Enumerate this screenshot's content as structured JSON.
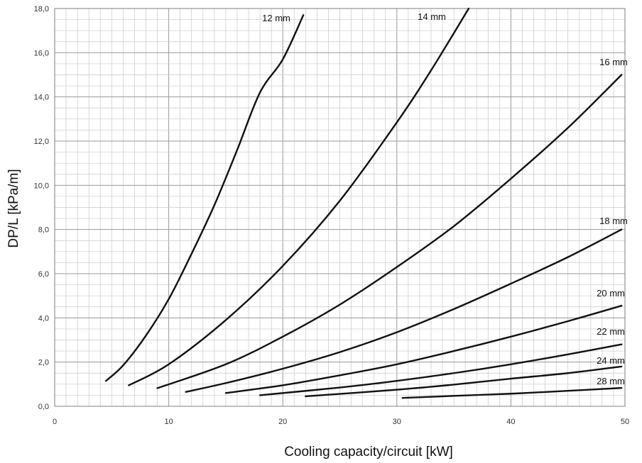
{
  "chart_data": {
    "type": "line",
    "xlabel": "Cooling capacity/circuit [kW]",
    "ylabel": "DP/L [kPa/m]",
    "xlim": [
      0,
      50
    ],
    "ylim": [
      0,
      18
    ],
    "x_ticks": [
      0,
      10,
      20,
      30,
      40,
      50
    ],
    "x_tick_labels": [
      "0",
      "10",
      "20",
      "30",
      "40",
      "50"
    ],
    "y_ticks": [
      0,
      2,
      4,
      6,
      8,
      10,
      12,
      14,
      16,
      18
    ],
    "y_tick_labels": [
      "0,0",
      "2,0",
      "4,0",
      "6,0",
      "8,0",
      "10,0",
      "12,0",
      "14,0",
      "16,0",
      "18,0"
    ],
    "x_minor_step": 1,
    "y_minor_step": 0.5,
    "grid": true,
    "series": [
      {
        "name": "12 mm",
        "points": [
          [
            4.5,
            1.15
          ],
          [
            6,
            1.85
          ],
          [
            8,
            3.2
          ],
          [
            10,
            4.85
          ],
          [
            12,
            6.9
          ],
          [
            14,
            9.1
          ],
          [
            16,
            11.6
          ],
          [
            18,
            14.2
          ],
          [
            20,
            15.7
          ],
          [
            21.8,
            17.7
          ]
        ]
      },
      {
        "name": "14 mm",
        "points": [
          [
            6.5,
            0.95
          ],
          [
            10,
            1.9
          ],
          [
            15,
            3.9
          ],
          [
            20,
            6.35
          ],
          [
            25,
            9.3
          ],
          [
            30,
            12.85
          ],
          [
            33,
            15.2
          ],
          [
            36.3,
            18.0
          ]
        ]
      },
      {
        "name": "16 mm",
        "points": [
          [
            9,
            0.82
          ],
          [
            15,
            1.9
          ],
          [
            20,
            3.15
          ],
          [
            25,
            4.6
          ],
          [
            30,
            6.3
          ],
          [
            35,
            8.15
          ],
          [
            40,
            10.3
          ],
          [
            45,
            12.6
          ],
          [
            49.7,
            15.0
          ]
        ]
      },
      {
        "name": "18 mm",
        "points": [
          [
            11.5,
            0.65
          ],
          [
            15,
            1.05
          ],
          [
            20,
            1.7
          ],
          [
            25,
            2.45
          ],
          [
            30,
            3.35
          ],
          [
            35,
            4.4
          ],
          [
            40,
            5.55
          ],
          [
            45,
            6.75
          ],
          [
            49.7,
            8.0
          ]
        ]
      },
      {
        "name": "20 mm",
        "points": [
          [
            15,
            0.6
          ],
          [
            20,
            0.95
          ],
          [
            25,
            1.4
          ],
          [
            30,
            1.9
          ],
          [
            35,
            2.5
          ],
          [
            40,
            3.15
          ],
          [
            45,
            3.85
          ],
          [
            49.7,
            4.55
          ]
        ]
      },
      {
        "name": "22 mm",
        "points": [
          [
            18,
            0.5
          ],
          [
            25,
            0.85
          ],
          [
            30,
            1.15
          ],
          [
            35,
            1.5
          ],
          [
            40,
            1.9
          ],
          [
            45,
            2.35
          ],
          [
            49.7,
            2.8
          ]
        ]
      },
      {
        "name": "24 mm",
        "points": [
          [
            22,
            0.45
          ],
          [
            30,
            0.75
          ],
          [
            35,
            0.98
          ],
          [
            40,
            1.25
          ],
          [
            45,
            1.5
          ],
          [
            49.7,
            1.8
          ]
        ]
      },
      {
        "name": "28 mm",
        "points": [
          [
            30.5,
            0.38
          ],
          [
            35,
            0.47
          ],
          [
            40,
            0.57
          ],
          [
            45,
            0.7
          ],
          [
            49.7,
            0.83
          ]
        ]
      }
    ]
  }
}
